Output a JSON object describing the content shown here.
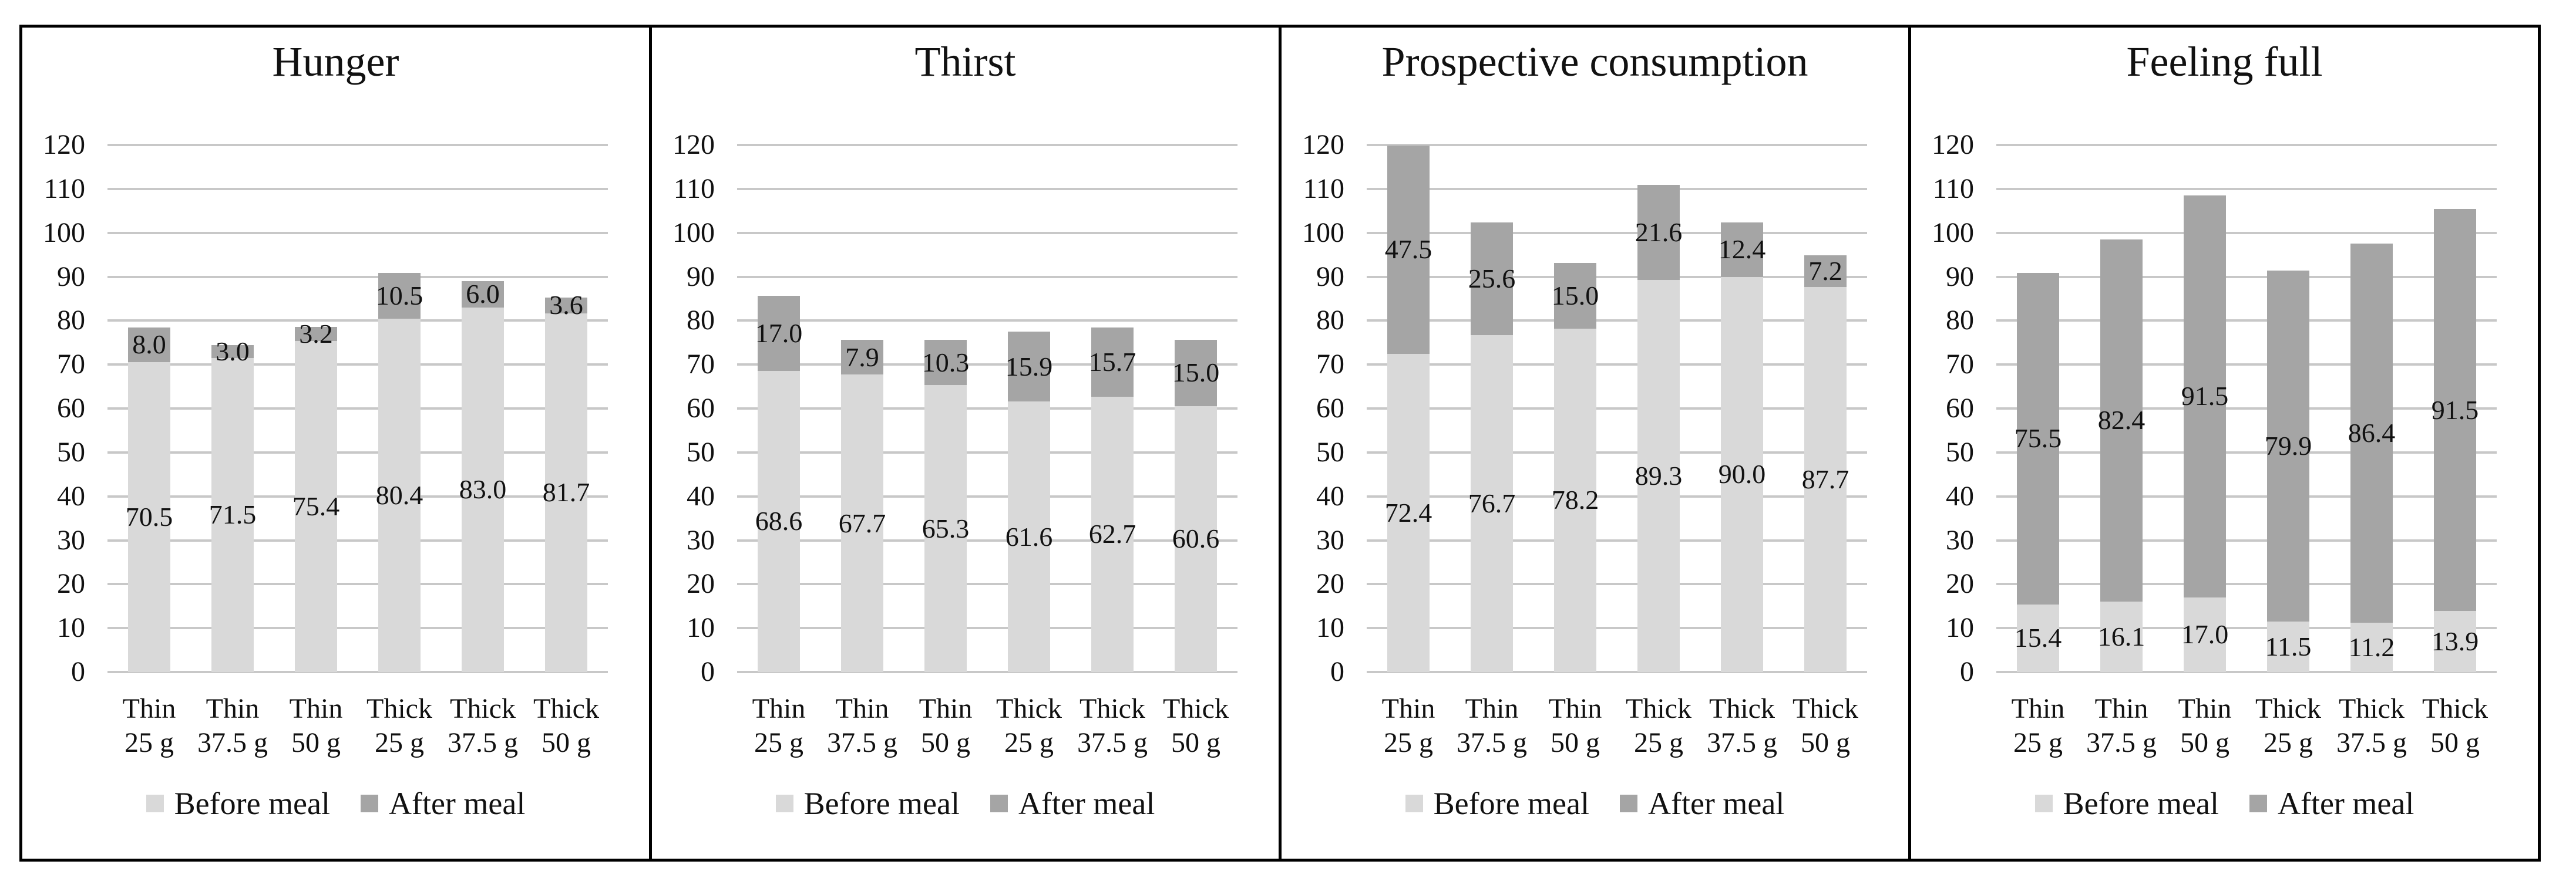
{
  "figure": {
    "legend": {
      "before_label": "Before meal",
      "after_label": "After meal"
    },
    "colors": {
      "before_meal": "#d9d9d9",
      "after_meal": "#a5a5a5",
      "gridline": "#c8c8c8",
      "border": "#000000",
      "text": "#111111",
      "background": "#ffffff"
    }
  },
  "chart_data": [
    {
      "type": "bar",
      "stacked": true,
      "title": "Hunger",
      "categories": [
        [
          "Thin",
          "25 g"
        ],
        [
          "Thin",
          "37.5 g"
        ],
        [
          "Thin",
          "50 g"
        ],
        [
          "Thick",
          "25 g"
        ],
        [
          "Thick",
          "37.5 g"
        ],
        [
          "Thick",
          "50 g"
        ]
      ],
      "series": [
        {
          "name": "Before meal",
          "values": [
            70.5,
            71.5,
            75.4,
            80.4,
            83.0,
            81.7
          ]
        },
        {
          "name": "After meal",
          "values": [
            8.0,
            3.0,
            3.2,
            10.5,
            6.0,
            3.6
          ]
        }
      ],
      "ylim": [
        0,
        120
      ],
      "ytick_step": 10,
      "grid": true,
      "legend_position": "bottom"
    },
    {
      "type": "bar",
      "stacked": true,
      "title": "Thirst",
      "categories": [
        [
          "Thin",
          "25 g"
        ],
        [
          "Thin",
          "37.5 g"
        ],
        [
          "Thin",
          "50 g"
        ],
        [
          "Thick",
          "25 g"
        ],
        [
          "Thick",
          "37.5 g"
        ],
        [
          "Thick",
          "50 g"
        ]
      ],
      "series": [
        {
          "name": "Before meal",
          "values": [
            68.6,
            67.7,
            65.3,
            61.6,
            62.7,
            60.6
          ]
        },
        {
          "name": "After meal",
          "values": [
            17.0,
            7.9,
            10.3,
            15.9,
            15.7,
            15.0
          ]
        }
      ],
      "ylim": [
        0,
        120
      ],
      "ytick_step": 10,
      "grid": true,
      "legend_position": "bottom"
    },
    {
      "type": "bar",
      "stacked": true,
      "title": "Prospective consumption",
      "categories": [
        [
          "Thin",
          "25 g"
        ],
        [
          "Thin",
          "37.5 g"
        ],
        [
          "Thin",
          "50 g"
        ],
        [
          "Thick",
          "25 g"
        ],
        [
          "Thick",
          "37.5 g"
        ],
        [
          "Thick",
          "50 g"
        ]
      ],
      "series": [
        {
          "name": "Before meal",
          "values": [
            72.4,
            76.7,
            78.2,
            89.3,
            90.0,
            87.7
          ]
        },
        {
          "name": "After meal",
          "values": [
            47.5,
            25.6,
            15.0,
            21.6,
            12.4,
            7.2
          ]
        }
      ],
      "ylim": [
        0,
        120
      ],
      "ytick_step": 10,
      "grid": true,
      "legend_position": "bottom"
    },
    {
      "type": "bar",
      "stacked": true,
      "title": "Feeling full",
      "categories": [
        [
          "Thin",
          "25 g"
        ],
        [
          "Thin",
          "37.5 g"
        ],
        [
          "Thin",
          "50 g"
        ],
        [
          "Thick",
          "25 g"
        ],
        [
          "Thick",
          "37.5 g"
        ],
        [
          "Thick",
          "50 g"
        ]
      ],
      "series": [
        {
          "name": "Before meal",
          "values": [
            15.4,
            16.1,
            17.0,
            11.5,
            11.2,
            13.9
          ]
        },
        {
          "name": "After meal",
          "values": [
            75.5,
            82.4,
            91.5,
            79.9,
            86.4,
            91.5
          ]
        }
      ],
      "ylim": [
        0,
        120
      ],
      "ytick_step": 10,
      "grid": true,
      "legend_position": "bottom"
    }
  ]
}
